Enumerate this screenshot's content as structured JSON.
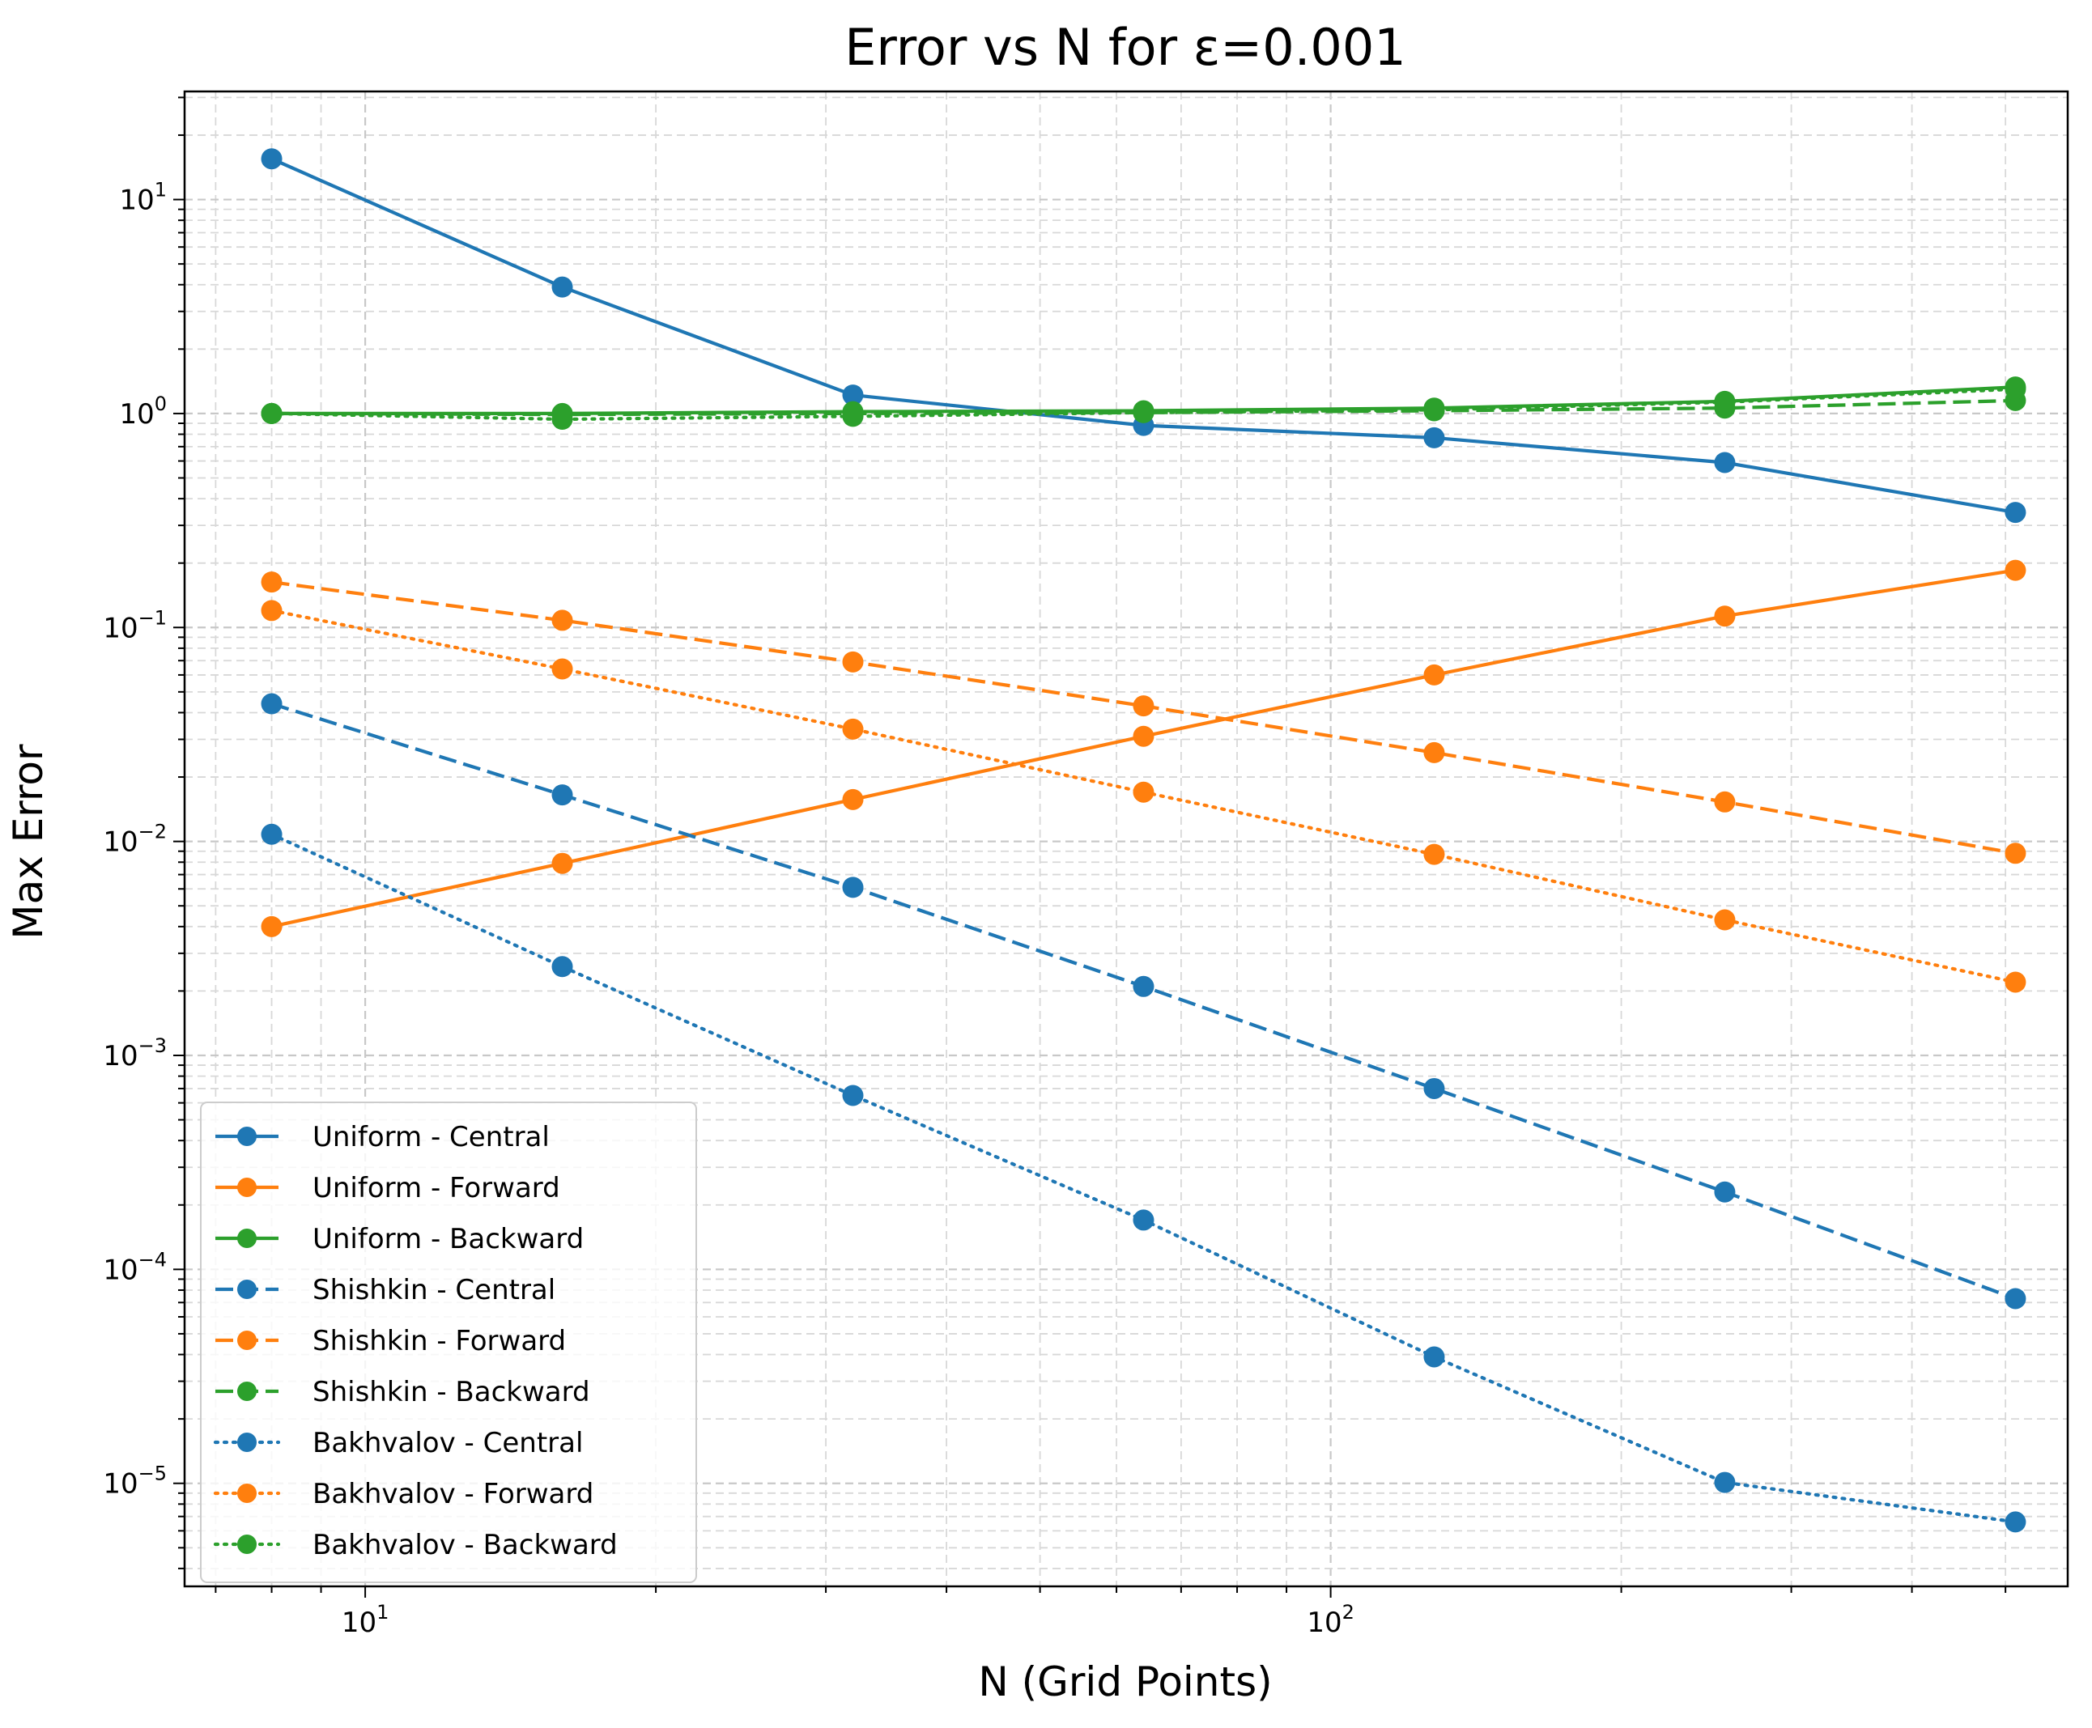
{
  "chart_data": {
    "type": "line",
    "title": "Error vs N for ε=0.001",
    "xlabel": "N (Grid Points)",
    "ylabel": "Max Error",
    "xscale": "log",
    "yscale": "log",
    "xlim": [
      6.5,
      580
    ],
    "ylim": [
      3.3e-06,
      32
    ],
    "grid": true,
    "legend_position": "lower-left",
    "x": [
      8,
      16,
      32,
      64,
      128,
      256,
      512
    ],
    "x_ticks": [
      {
        "value": 10,
        "base": "10",
        "exp": "1"
      },
      {
        "value": 100,
        "base": "10",
        "exp": "2"
      }
    ],
    "y_ticks": [
      {
        "value": 10,
        "base": "10",
        "exp": "1"
      },
      {
        "value": 1,
        "base": "10",
        "exp": "0"
      },
      {
        "value": 0.1,
        "base": "10",
        "exp": "−1"
      },
      {
        "value": 0.01,
        "base": "10",
        "exp": "−2"
      },
      {
        "value": 0.001,
        "base": "10",
        "exp": "−3"
      },
      {
        "value": 0.0001,
        "base": "10",
        "exp": "−4"
      },
      {
        "value": 1e-05,
        "base": "10",
        "exp": "−5"
      }
    ],
    "series": [
      {
        "name": "Uniform - Central",
        "color": "#1f77b4",
        "linestyle": "solid",
        "values": [
          15.5,
          3.9,
          1.22,
          0.88,
          0.77,
          0.59,
          0.345
        ]
      },
      {
        "name": "Uniform - Forward",
        "color": "#ff7f0e",
        "linestyle": "solid",
        "values": [
          0.004,
          0.0079,
          0.0157,
          0.031,
          0.06,
          0.113,
          0.185
        ]
      },
      {
        "name": "Uniform - Backward",
        "color": "#2ca02c",
        "linestyle": "solid",
        "values": [
          1.0,
          1.0,
          1.02,
          1.03,
          1.06,
          1.14,
          1.33
        ]
      },
      {
        "name": "Shishkin - Central",
        "color": "#1f77b4",
        "linestyle": "dashed",
        "values": [
          0.044,
          0.0165,
          0.0061,
          0.0021,
          0.0007,
          0.00023,
          7.3e-05
        ]
      },
      {
        "name": "Shishkin - Forward",
        "color": "#ff7f0e",
        "linestyle": "dashed",
        "values": [
          0.163,
          0.108,
          0.069,
          0.043,
          0.026,
          0.0153,
          0.0088
        ]
      },
      {
        "name": "Shishkin - Backward",
        "color": "#2ca02c",
        "linestyle": "dashed",
        "values": [
          1.0,
          0.99,
          1.0,
          1.01,
          1.03,
          1.06,
          1.15
        ]
      },
      {
        "name": "Bakhvalov - Central",
        "color": "#1f77b4",
        "linestyle": "dotted",
        "values": [
          0.0108,
          0.0026,
          0.00065,
          0.00017,
          3.9e-05,
          1.01e-05,
          6.6e-06
        ]
      },
      {
        "name": "Bakhvalov - Forward",
        "color": "#ff7f0e",
        "linestyle": "dotted",
        "values": [
          0.12,
          0.064,
          0.0335,
          0.017,
          0.0087,
          0.0043,
          0.0022
        ]
      },
      {
        "name": "Bakhvalov - Backward",
        "color": "#2ca02c",
        "linestyle": "dotted",
        "values": [
          1.0,
          0.94,
          0.97,
          1.01,
          1.04,
          1.13,
          1.3
        ]
      }
    ]
  }
}
